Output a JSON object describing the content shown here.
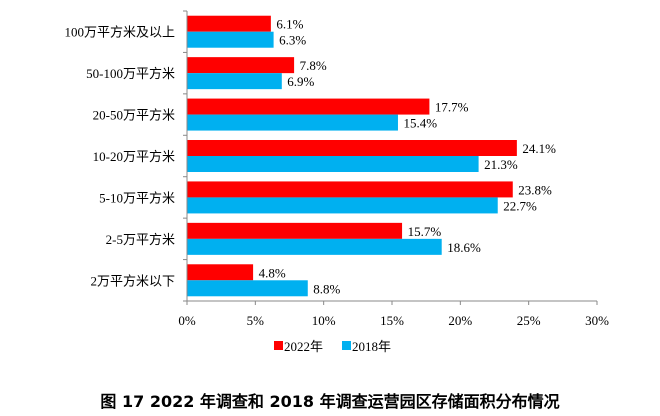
{
  "caption": "图 17 2022 年调查和 2018 年调查运营园区存储面积分布情况",
  "chart_data": {
    "type": "bar",
    "orientation": "horizontal",
    "categories": [
      "100万平方米及以上",
      "50-100万平方米",
      "20-50万平方米",
      "10-20万平方米",
      "5-10万平方米",
      "2-5万平方米",
      "2万平方米以下"
    ],
    "series": [
      {
        "name": "2022年",
        "color": "#FF0000",
        "values": [
          6.1,
          7.8,
          17.7,
          24.1,
          23.8,
          15.7,
          4.8
        ],
        "labels": [
          "6.1%",
          "7.8%",
          "17.7%",
          "24.1%",
          "23.8%",
          "15.7%",
          "4.8%"
        ]
      },
      {
        "name": "2018年",
        "color": "#00B0F0",
        "values": [
          6.3,
          6.9,
          15.4,
          21.3,
          22.7,
          18.6,
          8.8
        ],
        "labels": [
          "6.3%",
          "6.9%",
          "15.4%",
          "21.3%",
          "22.7%",
          "18.6%",
          "8.8%"
        ]
      }
    ],
    "xlim": [
      0,
      30
    ],
    "xticks": [
      "0%",
      "5%",
      "10%",
      "15%",
      "20%",
      "25%",
      "30%"
    ],
    "grid": false,
    "legend": "bottom"
  }
}
